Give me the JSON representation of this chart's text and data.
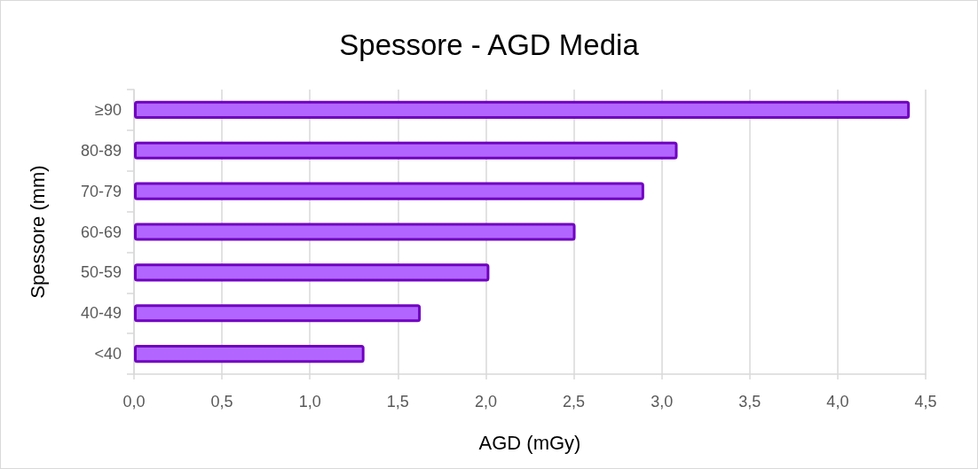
{
  "chart_data": {
    "type": "bar",
    "orientation": "horizontal",
    "title": "Spessore - AGD Media",
    "xlabel": "AGD (mGy)",
    "ylabel": "Spessore (mm)",
    "categories": [
      "≥90",
      "80-89",
      "70-79",
      "60-69",
      "50-59",
      "40-49",
      "<40"
    ],
    "values": [
      4.41,
      3.09,
      2.9,
      2.51,
      2.02,
      1.63,
      1.31
    ],
    "color": "#b266ff",
    "xlim": [
      0,
      4.5
    ],
    "xticks": [
      {
        "value": 0,
        "label": "0,0"
      },
      {
        "value": 0.5,
        "label": "0,5"
      },
      {
        "value": 1,
        "label": "1,0"
      },
      {
        "value": 1.5,
        "label": "1,5"
      },
      {
        "value": 2,
        "label": "2,0"
      },
      {
        "value": 2.5,
        "label": "2,5"
      },
      {
        "value": 3,
        "label": "3,0"
      },
      {
        "value": 3.5,
        "label": "3,5"
      },
      {
        "value": 4,
        "label": "4,0"
      },
      {
        "value": 4.5,
        "label": "4,5"
      }
    ],
    "grid": "x"
  }
}
